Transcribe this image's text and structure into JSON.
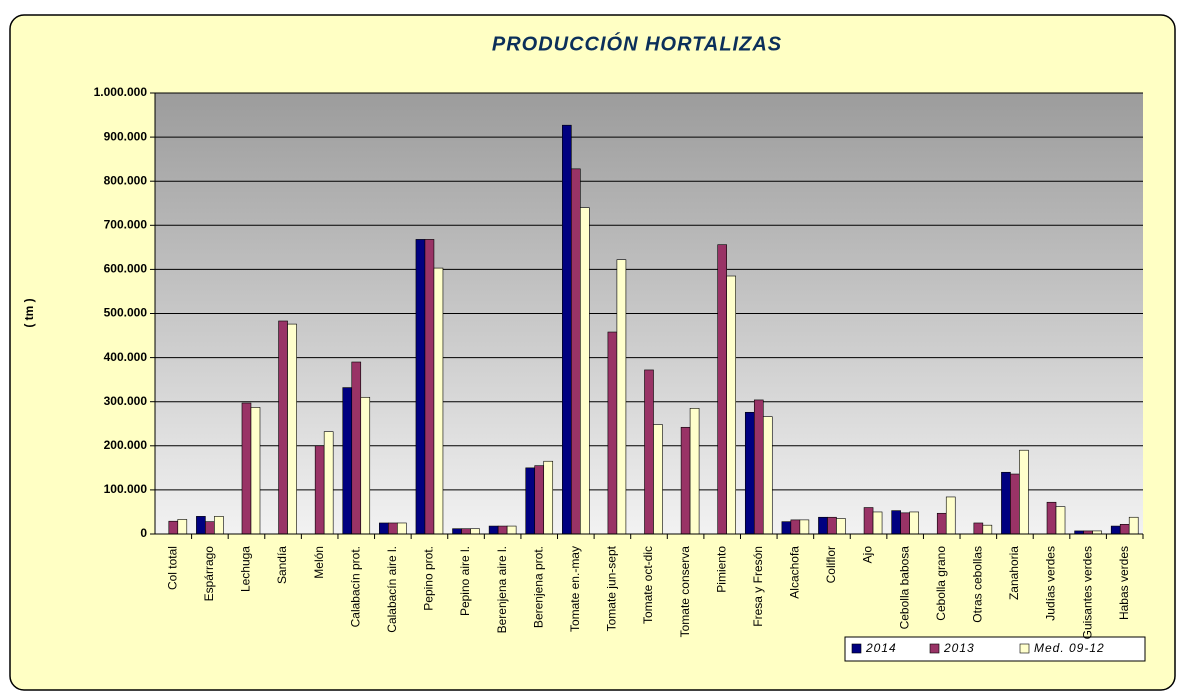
{
  "chart_data": {
    "type": "bar",
    "title": "PRODUCCIÓN HORTALIZAS",
    "y_label": "( tm )",
    "categories": [
      "Col total",
      "Espárrago",
      "Lechuga",
      "Sandía",
      "Melón",
      "Calabacín prot.",
      "Calabacín aire l.",
      "Pepino prot.",
      "Pepino aire l.",
      "Berenjena aire l.",
      "Berenjena prot.",
      "Tomate en.-may",
      "Tomate jun-sept",
      "Tomate oct-dic",
      "Tomate conserva",
      "Pimiento",
      "Fresa y Fresón",
      "Alcachofa",
      "Coliflor",
      "Ajo",
      "Cebolla babosa",
      "Cebolla grano",
      "Otras cebollas",
      "Zanahoria",
      "Judías verdes",
      "Guisantes verdes",
      "Habas verdes"
    ],
    "series": [
      {
        "name": "2014",
        "color": "#000080",
        "values": [
          null,
          40000,
          null,
          null,
          null,
          332000,
          25000,
          668000,
          12000,
          18000,
          150000,
          927000,
          null,
          null,
          null,
          null,
          276000,
          28000,
          38000,
          null,
          53000,
          null,
          null,
          140000,
          null,
          7000,
          18000
        ]
      },
      {
        "name": "2013",
        "color": "#993366",
        "values": [
          29000,
          28000,
          297000,
          483000,
          200000,
          390000,
          25000,
          668000,
          12000,
          18000,
          155000,
          828000,
          458000,
          372000,
          242000,
          656000,
          304000,
          32000,
          38000,
          60000,
          48000,
          47000,
          25000,
          136000,
          72000,
          7000,
          22000
        ]
      },
      {
        "name": "Med. 09-12",
        "color": "#ffffcc",
        "values": [
          33000,
          40000,
          287000,
          476000,
          232000,
          310000,
          25000,
          603000,
          12000,
          18000,
          165000,
          740000,
          622000,
          248000,
          285000,
          585000,
          266000,
          32000,
          35000,
          50000,
          50000,
          84000,
          20000,
          190000,
          62000,
          7000,
          38000
        ]
      }
    ],
    "ylim": [
      0,
      1000000
    ],
    "yticks": [
      0,
      {
        "value": 100000,
        "label": "100.000"
      },
      {
        "value": 200000,
        "label": "200.000"
      },
      {
        "value": 300000,
        "label": "300.000"
      },
      {
        "value": 400000,
        "label": "400.000"
      },
      {
        "value": 500000,
        "label": "500.000"
      },
      {
        "value": 600000,
        "label": "600.000"
      },
      {
        "value": 700000,
        "label": "700.000"
      },
      {
        "value": 800000,
        "label": "800.000"
      },
      {
        "value": 900000,
        "label": "900.000"
      },
      {
        "value": 1000000,
        "label": "1.000.000"
      }
    ],
    "grid": true,
    "legend": "bottom-right"
  }
}
